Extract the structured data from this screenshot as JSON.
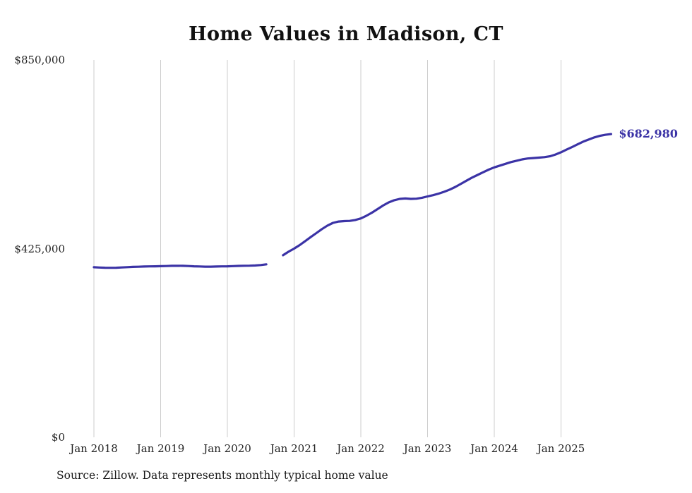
{
  "chart_data": {
    "type": "line",
    "title": "Home Values in Madison, CT",
    "series_name": "Monthly typical home value",
    "x_start": "2018-01",
    "x_interval": "month",
    "x_tick_labels": [
      "Jan 2018",
      "Jan 2019",
      "Jan 2020",
      "Jan 2021",
      "Jan 2022",
      "Jan 2023",
      "Jan 2024",
      "Jan 2025"
    ],
    "y_tick_labels": [
      "$0",
      "$425,000",
      "$850,000"
    ],
    "y_tick_values": [
      0,
      425000,
      850000
    ],
    "ylim": [
      0,
      850000
    ],
    "grid": "vertical-only",
    "gridline_color": "#cccccc",
    "line_color": "#3b33a6",
    "end_label": "$682,980",
    "end_value": 682980,
    "values": [
      383000,
      382400,
      382000,
      381800,
      382000,
      382600,
      383200,
      383800,
      384200,
      384600,
      385000,
      385200,
      385400,
      385800,
      386200,
      386400,
      386200,
      385800,
      385200,
      384800,
      384400,
      384300,
      384600,
      385000,
      385200,
      385600,
      386000,
      386400,
      386600,
      387000,
      388000,
      389500,
      null,
      null,
      410000,
      418000,
      425000,
      433000,
      442000,
      451000,
      460000,
      469000,
      477000,
      483000,
      486000,
      487000,
      487500,
      489500,
      493000,
      499000,
      506000,
      514000,
      522000,
      529000,
      534000,
      537000,
      538000,
      537000,
      537500,
      539500,
      542500,
      545500,
      549000,
      553000,
      558000,
      564000,
      571000,
      578000,
      585000,
      591000,
      597000,
      603000,
      608000,
      612000,
      616000,
      620000,
      623000,
      626000,
      628000,
      629000,
      630000,
      631000,
      633000,
      637000,
      642000,
      648000,
      654000,
      660000,
      666000,
      671000,
      675500,
      679000,
      681500,
      682980
    ],
    "source_note": "Source: Zillow. Data represents monthly typical home value"
  }
}
